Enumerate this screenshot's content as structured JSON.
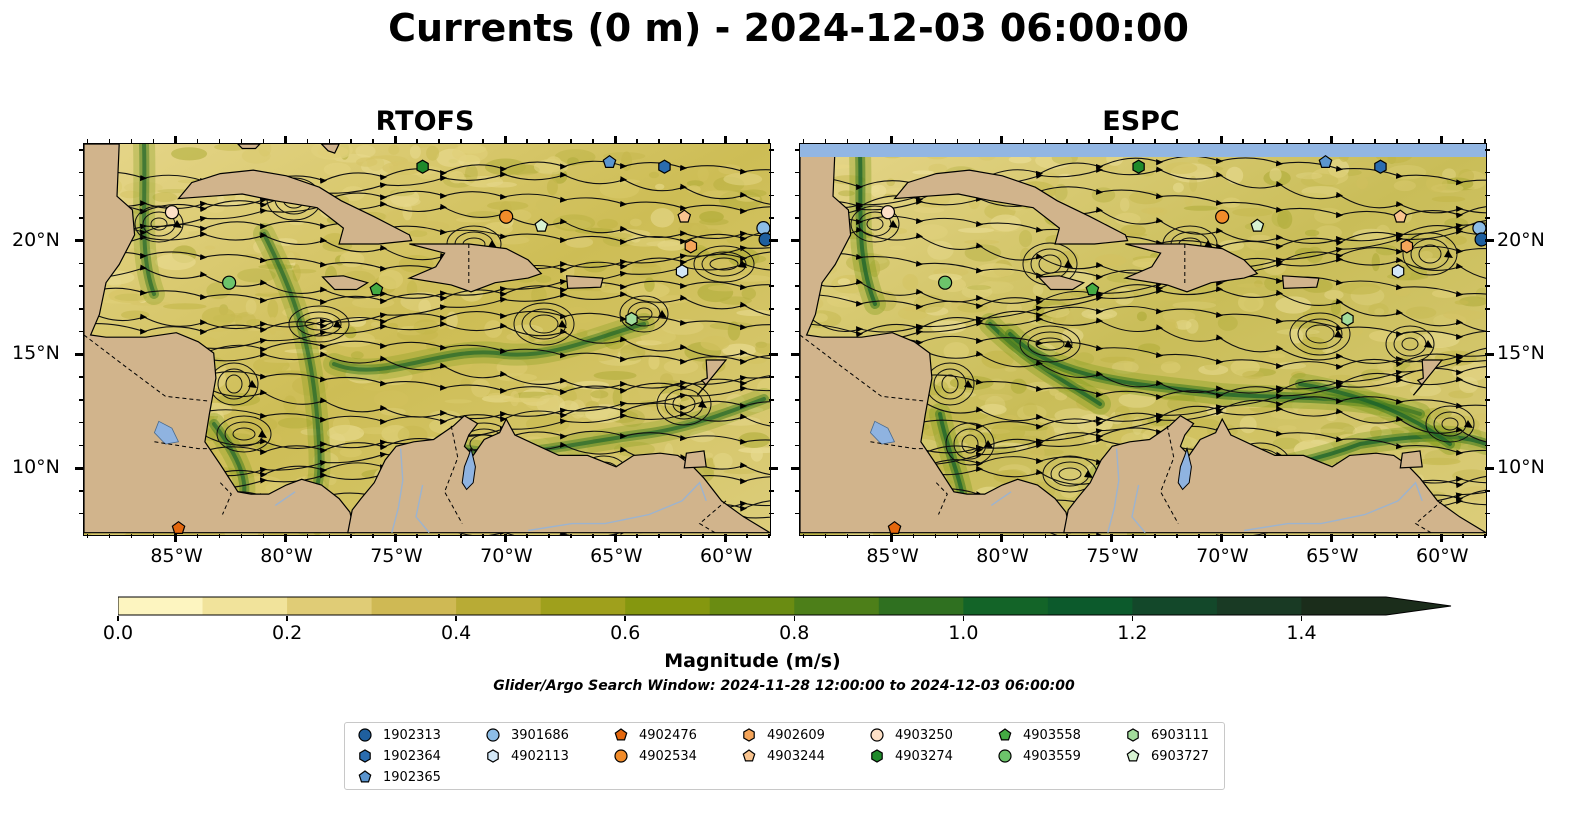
{
  "title": "Currents (0 m) - 2024-12-03 06:00:00",
  "panels": [
    {
      "title": "RTOFS",
      "ocean_mid": "#cdbd55",
      "green_strength": 0.85
    },
    {
      "title": "ESPC",
      "ocean_mid": "#c9bd58",
      "green_strength": 1.0
    }
  ],
  "axes": {
    "lon_labels": [
      "85°W",
      "80°W",
      "75°W",
      "70°W",
      "65°W",
      "60°W"
    ],
    "lat_labels": [
      "20°N",
      "15°N",
      "10°N"
    ]
  },
  "colorbar": {
    "label": "Magnitude (m/s)",
    "ticks": [
      "0.0",
      "0.2",
      "0.4",
      "0.6",
      "0.8",
      "1.0",
      "1.2",
      "1.4"
    ],
    "range": [
      0,
      1.5
    ],
    "extend": "max",
    "colors": [
      "#fdf5c0",
      "#f1e39b",
      "#e0cc76",
      "#cfb954",
      "#b8ab35",
      "#9fa01c",
      "#85970f",
      "#6a8c12",
      "#4d7f19",
      "#2f7020",
      "#136428",
      "#0c5a2c",
      "#13482a",
      "#193a24",
      "#1b2d1b"
    ]
  },
  "subtitle": "Glider/Argo Search Window: 2024-11-28 12:00:00 to 2024-12-03 06:00:00",
  "legend": [
    {
      "id": "1902313",
      "shape": "circle",
      "color": "#1f5f9e"
    },
    {
      "id": "1902364",
      "shape": "hexagon",
      "color": "#2a6cb0"
    },
    {
      "id": "1902365",
      "shape": "pentagon",
      "color": "#5b95cf"
    },
    {
      "id": "3901686",
      "shape": "circle",
      "color": "#8dbde6"
    },
    {
      "id": "4902113",
      "shape": "hexagon",
      "color": "#d3e7f6"
    },
    {
      "id": "4902476",
      "shape": "pentagon",
      "color": "#e4670d"
    },
    {
      "id": "4902534",
      "shape": "circle",
      "color": "#f28c2a"
    },
    {
      "id": "4902609",
      "shape": "hexagon",
      "color": "#f5a55a"
    },
    {
      "id": "4903244",
      "shape": "pentagon",
      "color": "#f9c48f"
    },
    {
      "id": "4903250",
      "shape": "circle",
      "color": "#fde0c7"
    },
    {
      "id": "4903274",
      "shape": "hexagon",
      "color": "#1f8a2b"
    },
    {
      "id": "4903558",
      "shape": "pentagon",
      "color": "#44ab43"
    },
    {
      "id": "4903559",
      "shape": "circle",
      "color": "#6cc46b"
    },
    {
      "id": "6903111",
      "shape": "hexagon",
      "color": "#a3dc9c"
    },
    {
      "id": "6903727",
      "shape": "pentagon",
      "color": "#d8f3d2"
    }
  ],
  "colors": {
    "land": "#d1b48c",
    "lake": "#8fb3e0",
    "noData": "#92b6e3"
  }
}
